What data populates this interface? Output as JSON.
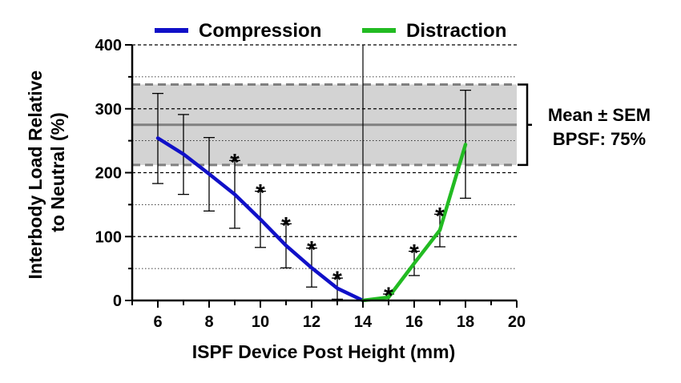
{
  "chart_data": {
    "type": "line",
    "xlabel": "ISPF Device Post Height (mm)",
    "ylabel_lines": [
      "Interbody Load Relative",
      "to Neutral (%)"
    ],
    "xlim": [
      5,
      20
    ],
    "ylim": [
      0,
      400
    ],
    "xticks": [
      6,
      8,
      10,
      12,
      14,
      16,
      18,
      20
    ],
    "yticks": [
      0,
      100,
      200,
      300,
      400
    ],
    "ygrid_major": [
      100,
      200,
      300,
      400
    ],
    "ygrid_minor": [
      50,
      150,
      250,
      350
    ],
    "vline_x": 14,
    "legend_position": "top",
    "significance_marker": "*",
    "reference_band": {
      "mean": 275,
      "lower": 212,
      "upper": 338,
      "label_lines": [
        "Mean ± SEM",
        "BPSF: 75%"
      ],
      "fill_color": "#d3d3d3",
      "line_color": "#808080"
    },
    "series": [
      {
        "name": "Compression",
        "color": "#1010c8",
        "points": [
          {
            "x": 6,
            "y": 254,
            "err_low": 183,
            "err_high": 324,
            "sig": false
          },
          {
            "x": 7,
            "y": 229,
            "err_low": 166,
            "err_high": 291,
            "sig": false
          },
          {
            "x": 8,
            "y": 198,
            "err_low": 140,
            "err_high": 255,
            "sig": false
          },
          {
            "x": 9,
            "y": 166,
            "err_low": 113,
            "err_high": 219,
            "sig": true
          },
          {
            "x": 10,
            "y": 127,
            "err_low": 83,
            "err_high": 171,
            "sig": true
          },
          {
            "x": 11,
            "y": 86,
            "err_low": 51,
            "err_high": 120,
            "sig": true
          },
          {
            "x": 12,
            "y": 51,
            "err_low": 21,
            "err_high": 82,
            "sig": true
          },
          {
            "x": 13,
            "y": 19,
            "err_low": 2,
            "err_high": 35,
            "sig": true
          },
          {
            "x": 14,
            "y": 0,
            "err_low": 0,
            "err_high": 0,
            "sig": false
          }
        ]
      },
      {
        "name": "Distraction",
        "color": "#22bb22",
        "points": [
          {
            "x": 14,
            "y": 0,
            "err_low": 0,
            "err_high": 0,
            "sig": false
          },
          {
            "x": 15,
            "y": 5,
            "err_low": 0,
            "err_high": 10,
            "sig": true
          },
          {
            "x": 16,
            "y": 58,
            "err_low": 39,
            "err_high": 77,
            "sig": true
          },
          {
            "x": 17,
            "y": 110,
            "err_low": 84,
            "err_high": 135,
            "sig": true
          },
          {
            "x": 18,
            "y": 244,
            "err_low": 160,
            "err_high": 329,
            "sig": false
          }
        ]
      }
    ]
  }
}
